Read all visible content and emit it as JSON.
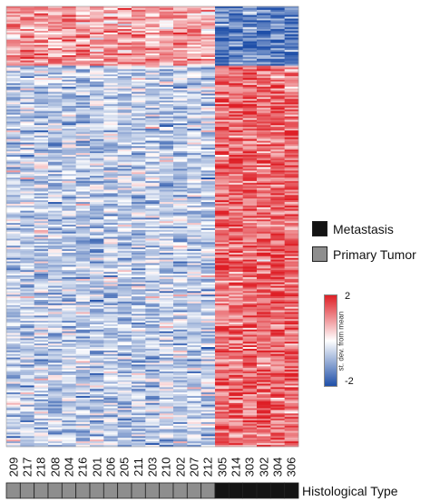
{
  "chart_data": {
    "type": "heatmap",
    "columns": [
      "209",
      "217",
      "218",
      "208",
      "204",
      "216",
      "201",
      "206",
      "205",
      "211",
      "203",
      "210",
      "202",
      "207",
      "212",
      "305",
      "214",
      "303",
      "302",
      "304",
      "306"
    ],
    "histological_type": [
      "Primary Tumor",
      "Primary Tumor",
      "Primary Tumor",
      "Primary Tumor",
      "Primary Tumor",
      "Primary Tumor",
      "Primary Tumor",
      "Primary Tumor",
      "Primary Tumor",
      "Primary Tumor",
      "Primary Tumor",
      "Primary Tumor",
      "Primary Tumor",
      "Primary Tumor",
      "Primary Tumor",
      "Metastasis",
      "Metastasis",
      "Metastasis",
      "Metastasis",
      "Metastasis",
      "Metastasis"
    ],
    "group_colors": {
      "Metastasis": "#141414",
      "Primary Tumor": "#8e8e8e"
    },
    "row_blocks": [
      {
        "rows": 34,
        "primary_tumor_mean": 0.8,
        "metastasis_mean": -1.4
      },
      {
        "rows": 218,
        "primary_tumor_mean": -0.55,
        "metastasis_mean": 1.35
      }
    ],
    "color_scale": {
      "min": -2,
      "max": 2,
      "low_color": "#1f4fa8",
      "mid_color": "#ffffff",
      "high_color": "#de1f26"
    },
    "colorbar": {
      "title": "st. dev. from mean",
      "max_label": "2",
      "min_label": "-2"
    },
    "legend": [
      {
        "label": "Metastasis",
        "color": "#141414"
      },
      {
        "label": "Primary Tumor",
        "color": "#8e8e8e"
      }
    ],
    "annotation_track_label": "Histological Type"
  }
}
